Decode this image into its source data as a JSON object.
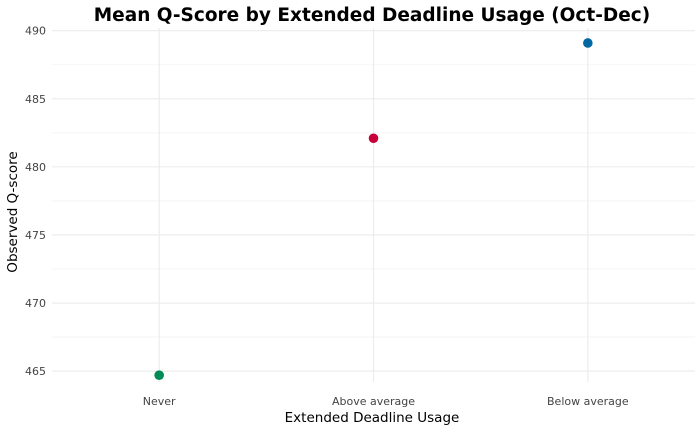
{
  "chart_data": {
    "type": "scatter",
    "title": "Mean Q-Score by Extended Deadline Usage (Oct-Dec)",
    "xlabel": "Extended Deadline Usage",
    "ylabel": "Observed Q-score",
    "categories": [
      "Never",
      "Above average",
      "Below average"
    ],
    "values": [
      464.7,
      482.1,
      489.1
    ],
    "point_colors": [
      "#008b57",
      "#c7003a",
      "#0067a3"
    ],
    "ylim": [
      464.2,
      490.2
    ],
    "y_ticks": [
      465,
      470,
      475,
      480,
      485,
      490
    ],
    "y_tick_labels": [
      "465",
      "470",
      "475",
      "480",
      "485",
      "490"
    ],
    "y_minor_ticks": [
      467.5,
      472.5,
      477.5,
      482.5,
      487.5
    ],
    "grid": true,
    "legend": "none"
  }
}
